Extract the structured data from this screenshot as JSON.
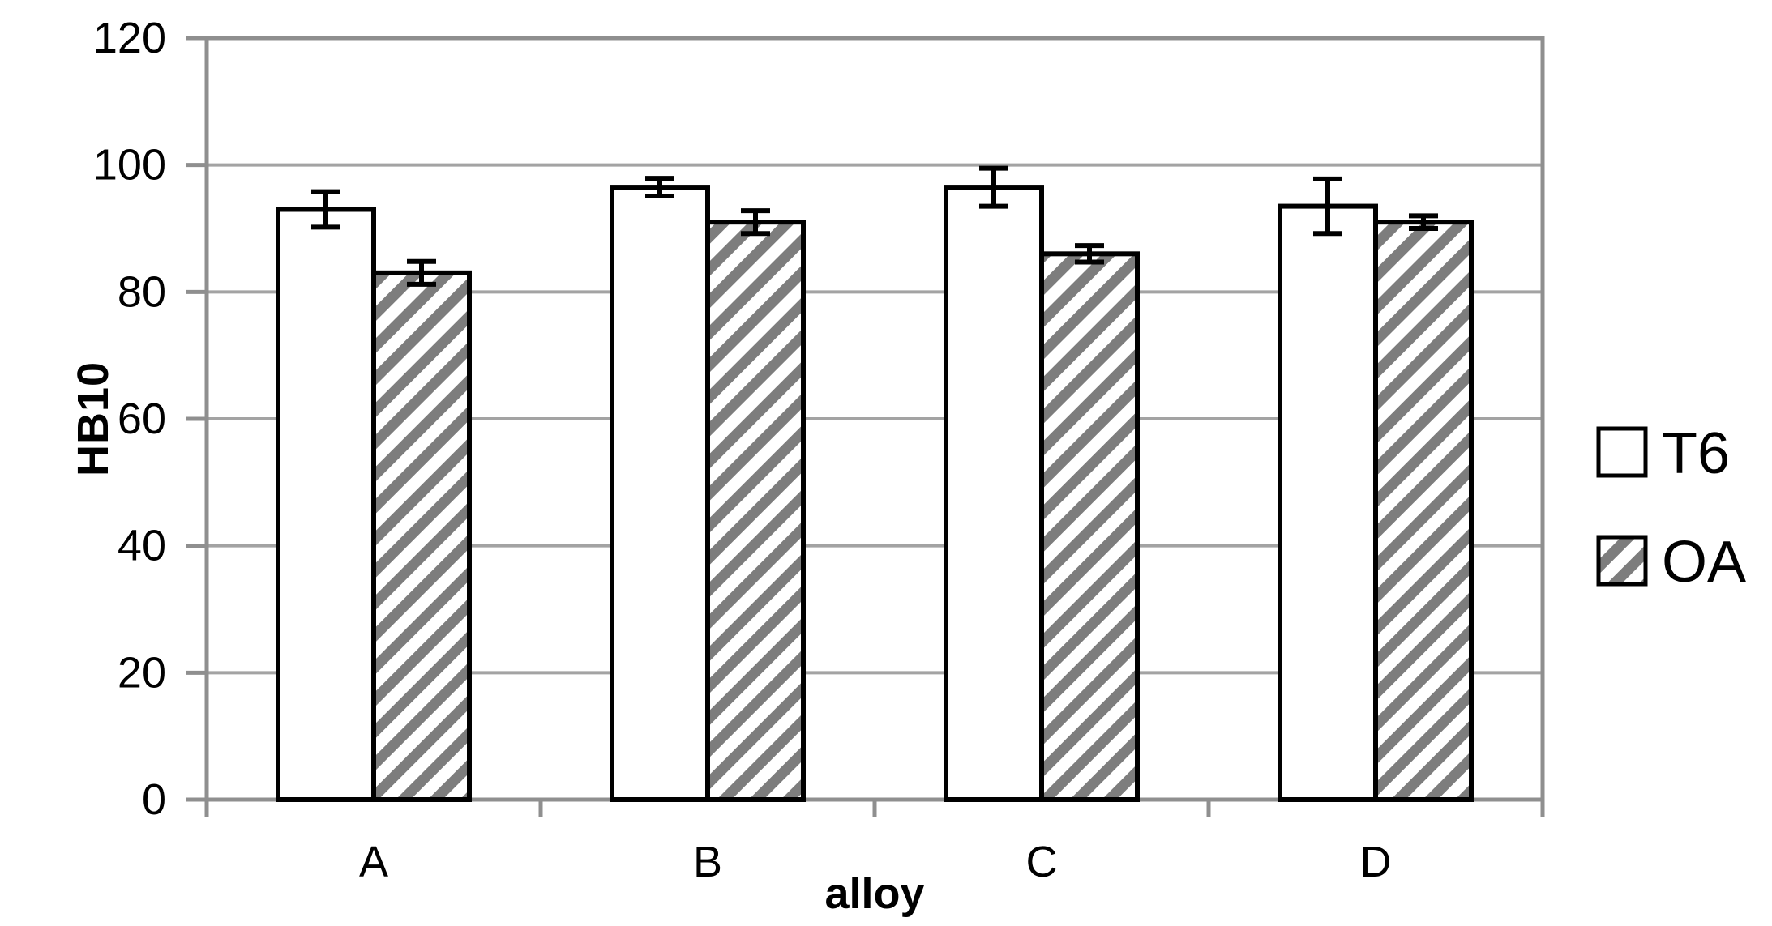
{
  "chart_data": {
    "type": "bar",
    "categories": [
      "A",
      "B",
      "C",
      "D"
    ],
    "series": [
      {
        "name": "T6",
        "fill": "white",
        "values": [
          93,
          96.5,
          96.5,
          93.5
        ],
        "errors": [
          2.8,
          1.4,
          3.0,
          4.3
        ]
      },
      {
        "name": "OA",
        "fill": "hatched",
        "values": [
          83,
          91,
          86,
          91
        ],
        "errors": [
          1.8,
          1.8,
          1.3,
          1.0
        ]
      }
    ],
    "title": "",
    "xlabel": "alloy",
    "ylabel": "HB10",
    "ylim": [
      0,
      120
    ],
    "ytick_step": 20,
    "ytick_labels": [
      "0",
      "20",
      "40",
      "60",
      "80",
      "100",
      "120"
    ],
    "grid": true,
    "legend_position": "right",
    "legend": [
      "T6",
      "OA"
    ]
  },
  "colors": {
    "background": "#ffffff",
    "gridline": "#a3a3a3",
    "axis": "#8f8f8f",
    "bar_border": "#000000",
    "bar_fill_white": "#ffffff",
    "hatch_stripe": "#7d7d7d",
    "error_bar": "#000000",
    "text": "#000000"
  }
}
